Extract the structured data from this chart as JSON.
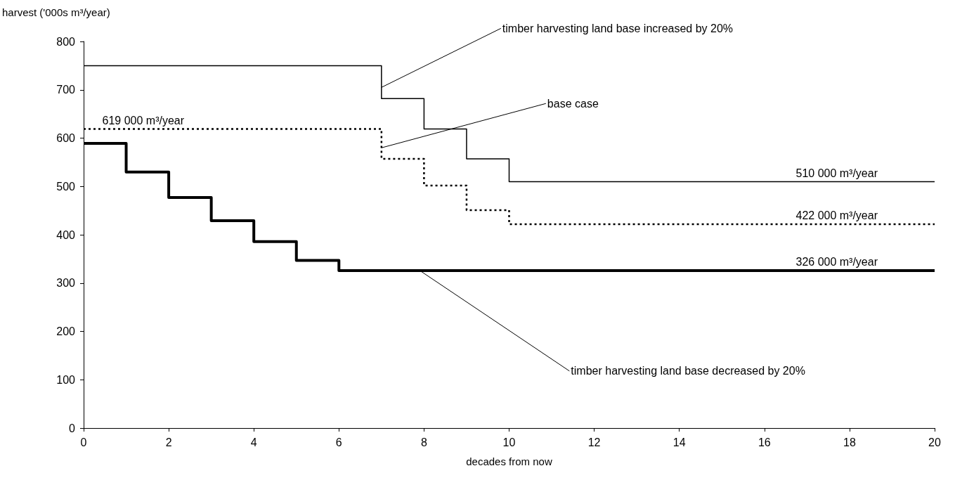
{
  "chart_data": {
    "type": "step",
    "xlabel": "decades from now",
    "ylabel": "harvest ('000s m³/year)",
    "xlim": [
      0,
      20
    ],
    "xticks": [
      0,
      2,
      4,
      6,
      8,
      10,
      12,
      14,
      16,
      18,
      20
    ],
    "ylim": [
      0,
      800
    ],
    "yticks": [
      0,
      100,
      200,
      300,
      400,
      500,
      600,
      700,
      800
    ],
    "grid": false,
    "marker": "none",
    "series": [
      {
        "color": "#000000",
        "line_style": "solid",
        "x": [
          0,
          7,
          8,
          9,
          10,
          20
        ],
        "values": [
          750,
          682,
          619,
          557,
          510,
          510
        ]
      },
      {
        "color": "#000000",
        "line_style": "dotted",
        "x": [
          0,
          7,
          8,
          9,
          10,
          20
        ],
        "values": [
          619,
          557,
          502,
          451,
          422,
          422
        ]
      },
      {
        "color": "#000000",
        "line_style": "solid",
        "x": [
          0,
          1,
          2,
          3,
          4,
          5,
          6,
          20
        ],
        "values": [
          589,
          530,
          477,
          429,
          386,
          347,
          326,
          326
        ]
      }
    ],
    "annotations": [
      {
        "text": "timber harvesting land base increased by 20%",
        "x": 7,
        "y": 705
      },
      {
        "text": "base case",
        "x": 7,
        "y": 580
      },
      {
        "text": "timber harvesting land base decreased by 20%",
        "x": 7.9,
        "y": 326
      },
      {
        "text": "619 000 m³/year",
        "x": 1.4,
        "y": 619
      },
      {
        "text": "510 000 m³/year",
        "x": 17.7,
        "y": 510
      },
      {
        "text": "422 000 m³/year",
        "x": 17.7,
        "y": 422
      },
      {
        "text": "326 000 m³/year",
        "x": 17.7,
        "y": 326
      }
    ]
  }
}
